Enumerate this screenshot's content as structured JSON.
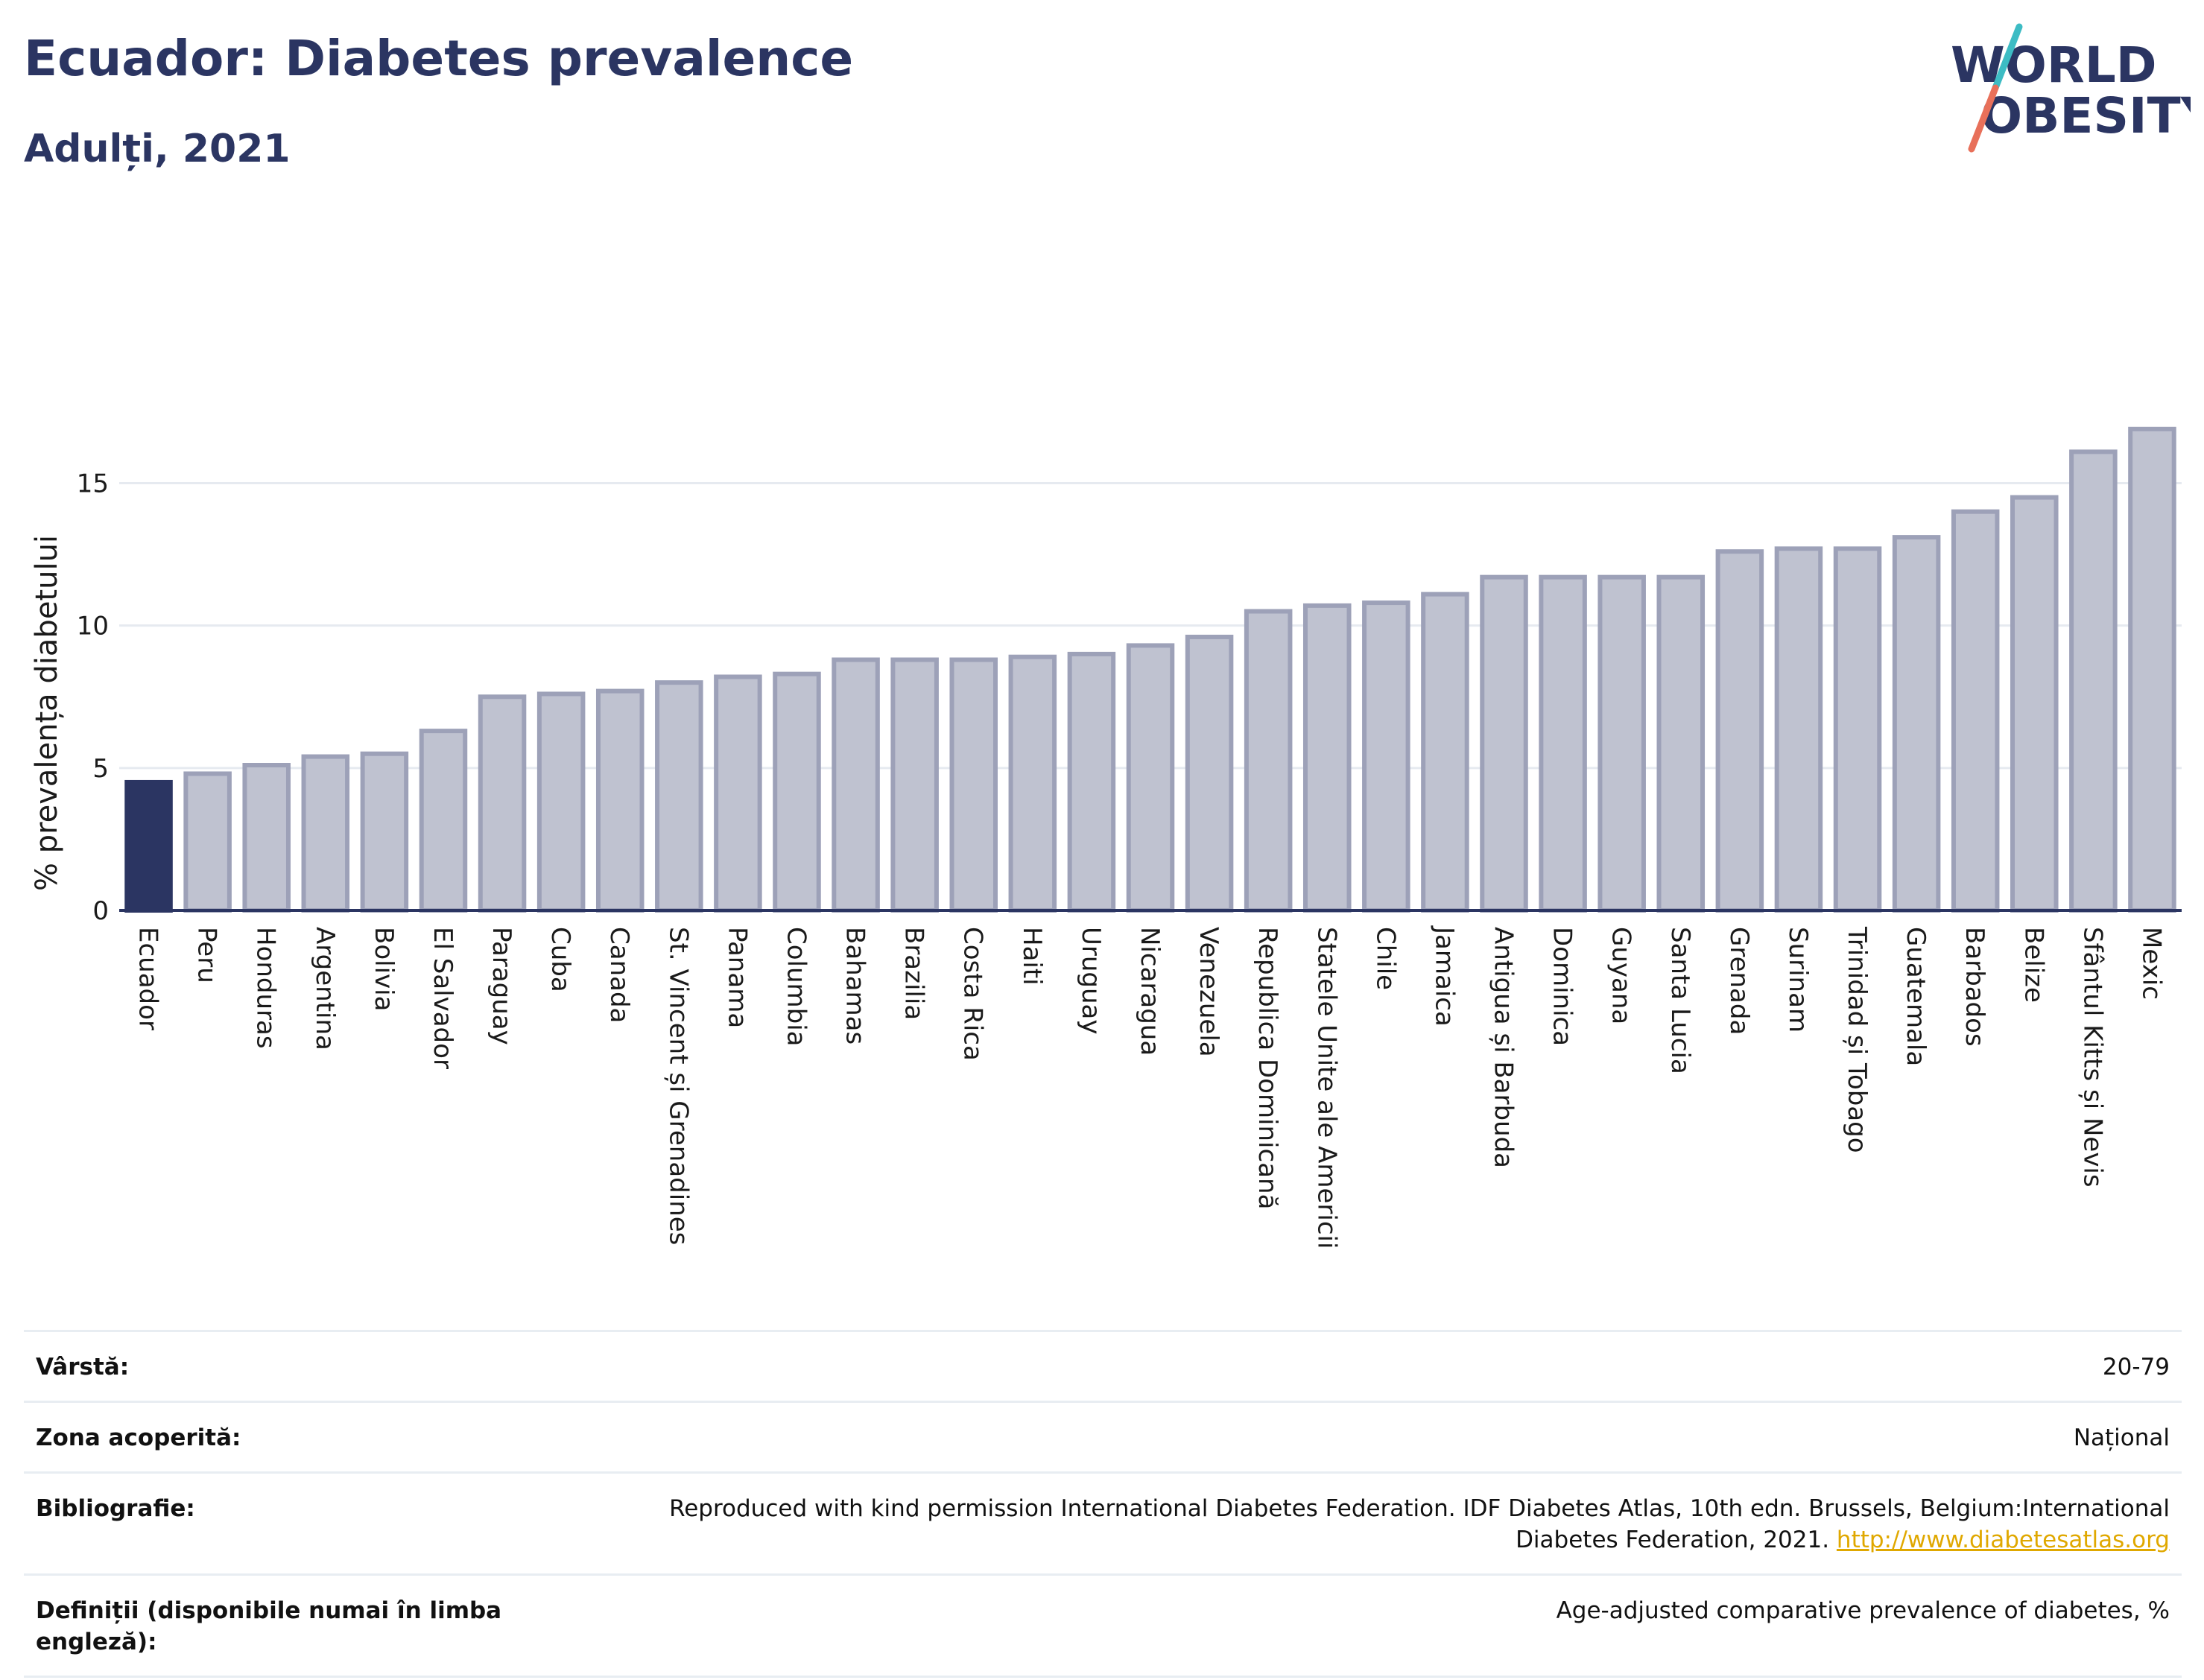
{
  "header": {
    "title": "Ecuador: Diabetes prevalence",
    "subtitle": "Adulți, 2021",
    "logo_line1": "WORLD",
    "logo_line2": "OBESITY"
  },
  "colors": {
    "highlight": "#2b3562",
    "bar_fill": "#bfc2d0",
    "bar_stroke": "#9da1b8",
    "logo_slash_top": "#3dbcc4",
    "logo_slash_bottom": "#e8705a",
    "link": "#e0a800"
  },
  "chart_data": {
    "type": "bar",
    "ylabel": "% prevalența diabetului",
    "ylim": [
      0,
      17
    ],
    "yticks": [
      0,
      5,
      10,
      15
    ],
    "grid": true,
    "highlight_category": "Ecuador",
    "categories": [
      "Ecuador",
      "Peru",
      "Honduras",
      "Argentina",
      "Bolivia",
      "El Salvador",
      "Paraguay",
      "Cuba",
      "Canada",
      "St. Vincent și Grenadines",
      "Panama",
      "Columbia",
      "Bahamas",
      "Brazilia",
      "Costa Rica",
      "Haiti",
      "Uruguay",
      "Nicaragua",
      "Venezuela",
      "Republica Dominicană",
      "Statele Unite ale Americii",
      "Chile",
      "Jamaica",
      "Antigua și Barbuda",
      "Dominica",
      "Guyana",
      "Santa Lucia",
      "Grenada",
      "Surinam",
      "Trinidad și Tobago",
      "Guatemala",
      "Barbados",
      "Belize",
      "Sfântul Kitts și Nevis",
      "Mexic"
    ],
    "values": [
      4.5,
      4.8,
      5.1,
      5.4,
      5.5,
      6.3,
      7.5,
      7.6,
      7.7,
      8.0,
      8.2,
      8.3,
      8.8,
      8.8,
      8.8,
      8.9,
      9.0,
      9.3,
      9.6,
      10.5,
      10.7,
      10.8,
      11.1,
      11.7,
      11.7,
      11.7,
      11.7,
      12.6,
      12.7,
      12.7,
      13.1,
      14.0,
      14.5,
      16.1,
      16.9
    ]
  },
  "meta": [
    {
      "label": "Vârstă:",
      "value": "20-79"
    },
    {
      "label": "Zona acoperită:",
      "value": "Național"
    },
    {
      "label": "Bibliografie:",
      "value": "Reproduced with kind permission International Diabetes Federation.  IDF Diabetes Atlas, 10th edn. Brussels, Belgium:International Diabetes Federation, 2021. ",
      "link": "http://www.diabetesatlas.org"
    },
    {
      "label": "Definiții (disponibile numai în limba engleză):",
      "value": "Age-adjusted comparative prevalence of diabetes, %"
    }
  ]
}
